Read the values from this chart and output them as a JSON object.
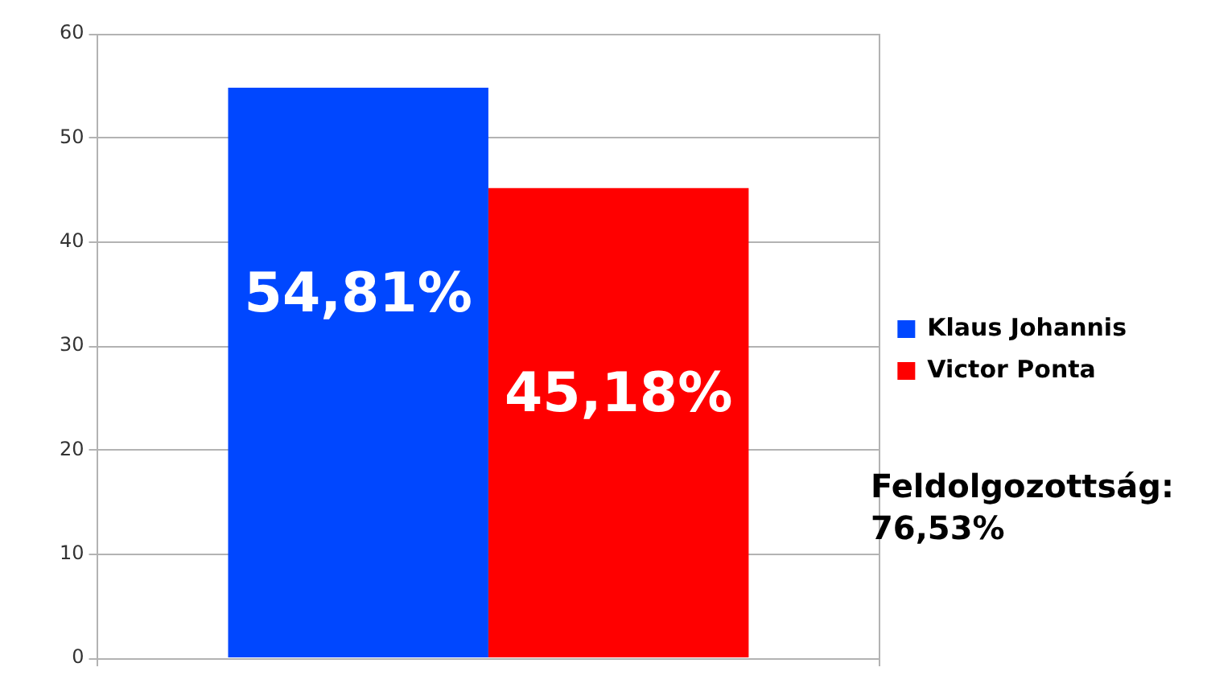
{
  "chart_data": {
    "type": "bar",
    "categories": [
      null
    ],
    "series": [
      {
        "name": "Klaus Johannis",
        "color": "#0047ff",
        "values": [
          54.81
        ],
        "value_labels": [
          "54,81%"
        ]
      },
      {
        "name": "Victor Ponta",
        "color": "#ff0000",
        "values": [
          45.18
        ],
        "value_labels": [
          "45,18%"
        ]
      }
    ],
    "ylim": [
      0,
      60
    ],
    "yticks": [
      0,
      10,
      20,
      30,
      40,
      50,
      60
    ],
    "grid": true,
    "legend": "right",
    "tick_labels": "y",
    "annotations": [
      "Feldolgozottság: 76,53%"
    ]
  }
}
